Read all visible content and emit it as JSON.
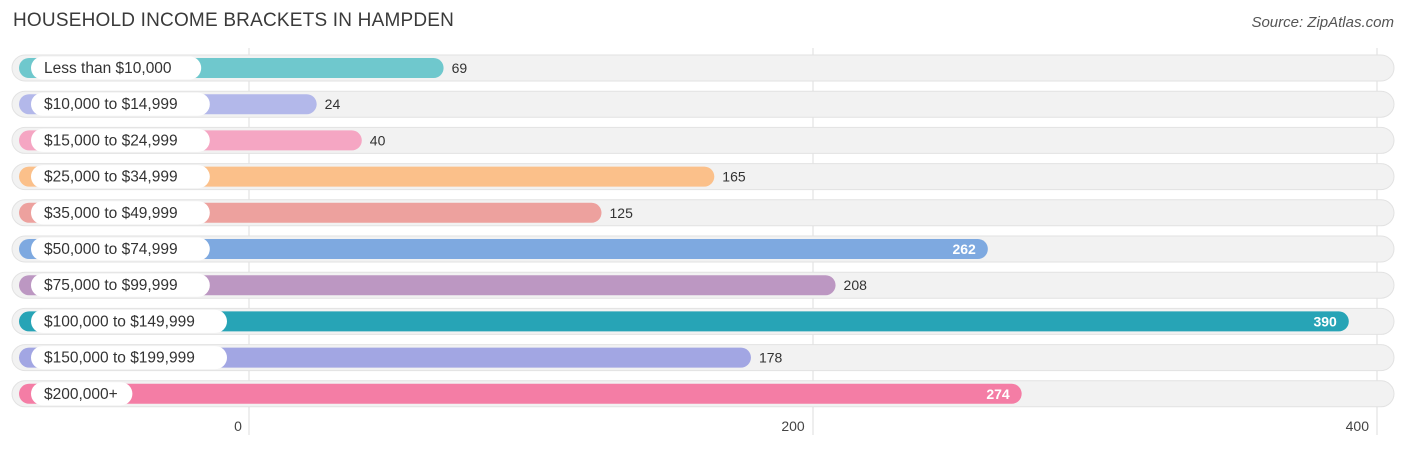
{
  "title": "HOUSEHOLD INCOME BRACKETS IN HAMPDEN",
  "source": "Source: ZipAtlas.com",
  "chart_data": {
    "type": "bar",
    "orientation": "horizontal",
    "title": "HOUSEHOLD INCOME BRACKETS IN HAMPDEN",
    "categories": [
      "Less than $10,000",
      "$10,000 to $14,999",
      "$15,000 to $24,999",
      "$25,000 to $34,999",
      "$35,000 to $49,999",
      "$50,000 to $74,999",
      "$75,000 to $99,999",
      "$100,000 to $149,999",
      "$150,000 to $199,999",
      "$200,000+"
    ],
    "values": [
      69,
      24,
      40,
      165,
      125,
      262,
      208,
      390,
      178,
      274
    ],
    "value_labels": [
      "69",
      "24",
      "40",
      "165",
      "125",
      "262",
      "208",
      "390",
      "178",
      "274"
    ],
    "colors": [
      "#6fc8cd",
      "#b3b8ea",
      "#f5a6c3",
      "#fbc08a",
      "#eda19e",
      "#7ea9e0",
      "#bc97c2",
      "#27a4b6",
      "#a2a6e3",
      "#f47da5"
    ],
    "label_inside": [
      false,
      false,
      false,
      false,
      false,
      true,
      false,
      true,
      false,
      true
    ],
    "xlim": [
      0,
      400
    ],
    "ticks": [
      0,
      200,
      400
    ],
    "tick_labels": [
      "0",
      "200",
      "400"
    ],
    "grid": true
  }
}
